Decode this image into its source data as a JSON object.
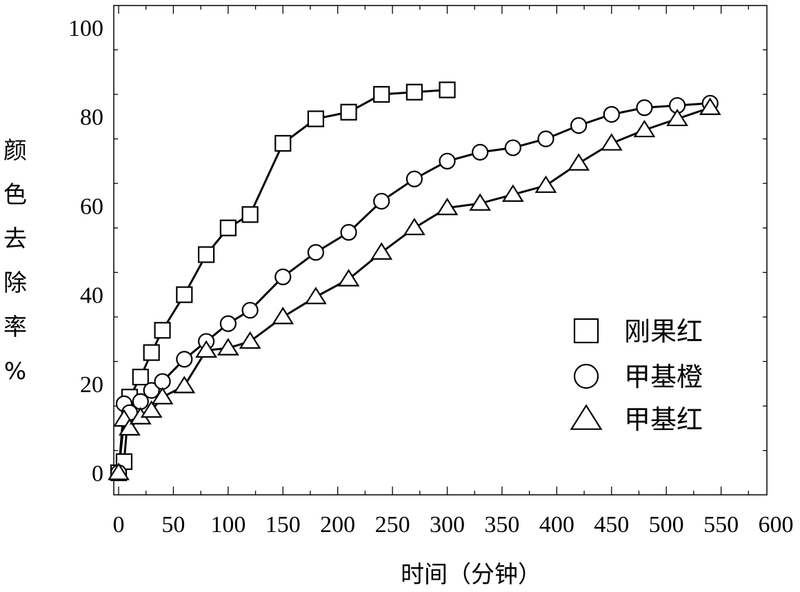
{
  "chart_data": {
    "type": "line",
    "xlabel": "时间（分钟）",
    "ylabel": [
      "颜",
      "色",
      "去",
      "除",
      "率",
      "%"
    ],
    "xlim": [
      0,
      600
    ],
    "ylim": [
      0,
      100
    ],
    "xticks": [
      0,
      50,
      100,
      150,
      200,
      250,
      300,
      350,
      400,
      450,
      500,
      550,
      600
    ],
    "yticks": [
      0,
      20,
      40,
      60,
      80,
      100
    ],
    "grid": false,
    "legend_position": "bottom-right",
    "series": [
      {
        "name": "刚果红",
        "marker": "square",
        "x": [
          0,
          5,
          10,
          20,
          30,
          40,
          60,
          80,
          100,
          120,
          150,
          180,
          210,
          240,
          270,
          300
        ],
        "y": [
          0,
          2.5,
          17,
          21.5,
          27,
          32,
          40,
          49,
          55,
          58,
          74,
          79.5,
          81,
          85,
          85.5,
          86
        ]
      },
      {
        "name": "甲基橙",
        "marker": "circle",
        "x": [
          0,
          5,
          10,
          20,
          30,
          40,
          60,
          80,
          100,
          120,
          150,
          180,
          210,
          240,
          270,
          300,
          330,
          360,
          390,
          420,
          450,
          480,
          510,
          540
        ],
        "y": [
          0,
          15.5,
          13.5,
          16,
          18.5,
          20.5,
          25.5,
          29.5,
          33.5,
          36.5,
          44,
          49.5,
          54,
          61,
          66,
          70,
          72,
          73,
          75,
          78,
          80.5,
          82,
          82.5,
          83
        ]
      },
      {
        "name": "甲基红",
        "marker": "triangle",
        "x": [
          0,
          5,
          10,
          20,
          30,
          40,
          60,
          80,
          100,
          120,
          150,
          180,
          210,
          240,
          270,
          300,
          330,
          360,
          390,
          420,
          450,
          480,
          510,
          540
        ],
        "y": [
          0,
          12,
          10,
          12.5,
          14,
          17,
          19.5,
          27.5,
          28,
          29.5,
          35,
          39.5,
          43.5,
          49.5,
          55,
          59.5,
          60.5,
          62.5,
          64.5,
          69.5,
          74,
          77,
          79.5,
          82
        ]
      }
    ]
  }
}
